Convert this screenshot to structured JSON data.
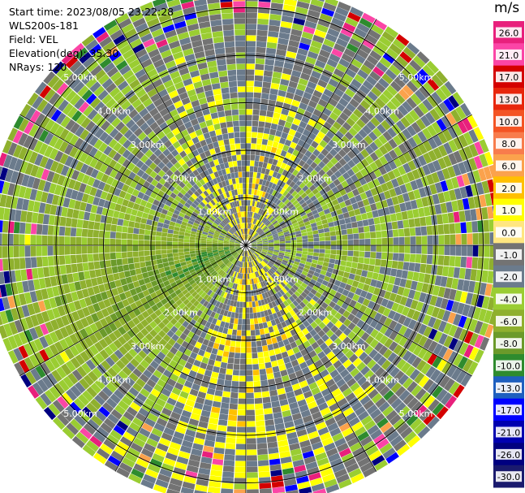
{
  "header": {
    "start_time": "Start time: 2023/08/05 23:22:28",
    "instrument": "WLS200s-181",
    "field": "Field: VEL",
    "elevation": "Elevation(deg): 35.30",
    "nrays": "NRays: 120"
  },
  "colorbar": {
    "unit": "m/s",
    "ticks": [
      "26.0",
      "21.0",
      "17.0",
      "13.0",
      "10.0",
      "8.0",
      "6.0",
      "2.0",
      "1.0",
      "0.0",
      "-1.0",
      "-2.0",
      "-4.0",
      "-6.0",
      "-8.0",
      "-10.0",
      "-13.0",
      "-17.0",
      "-21.0",
      "-26.0",
      "-30.0"
    ],
    "colors": [
      "#e8207c",
      "#fb45a6",
      "#d40000",
      "#e8260c",
      "#f45424",
      "#f87c4c",
      "#fba24c",
      "#ffc000",
      "#ffff00",
      "#ffe680",
      "#737373",
      "#6b7b8c",
      "#9acd32",
      "#8fb02e",
      "#6b9a2a",
      "#2e8b2e",
      "#1e5fbf",
      "#0000ff",
      "#0000b0",
      "#000080",
      "#1a1a6e"
    ]
  },
  "chart_data": {
    "type": "heatmap",
    "projection": "polar PPI scan",
    "field": "VEL",
    "units": "m/s",
    "nrays": 120,
    "range_rings_km": [
      1.0,
      2.0,
      3.0,
      4.0,
      5.0
    ],
    "range_labels": [
      "1.00km",
      "2.00km",
      "3.00km",
      "4.00km",
      "5.00km"
    ],
    "max_range_km": 5.5,
    "value_range": [
      -30.0,
      30.0
    ],
    "dominant_pattern": "mostly -2 to 2 m/s with positive (yellow) lobes north and south, negative (green/blue) lobe west-southwest"
  }
}
